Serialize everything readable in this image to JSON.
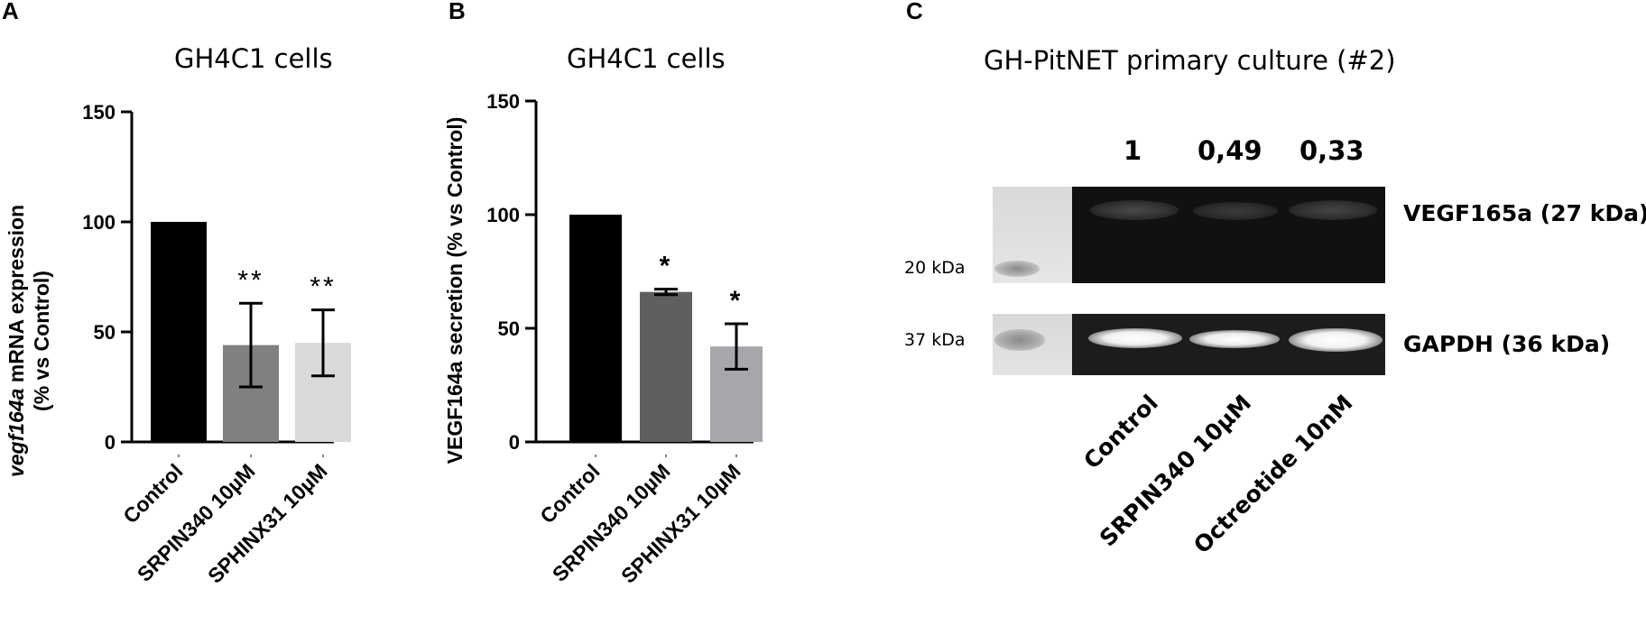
{
  "panels": {
    "a": {
      "letter": "A"
    },
    "b": {
      "letter": "B"
    },
    "c": {
      "letter": "C"
    }
  },
  "chart_data": [
    {
      "type": "bar",
      "title": "GH4C1 cells",
      "ylabel_italic": "vegf164a",
      "ylabel_rest": " mRNA expression",
      "ylabel_line2": "(% vs Control)",
      "categories": [
        "Control",
        "SRPIN340 10µM",
        "SPHINX31 10µM"
      ],
      "values": [
        100,
        44,
        45
      ],
      "errors": [
        0,
        19,
        15
      ],
      "significance": [
        "",
        "**",
        "**"
      ],
      "colors": [
        "#000000",
        "#808080",
        "#d9d9d9"
      ],
      "ylim": [
        0,
        150
      ],
      "yticks": [
        0,
        50,
        100,
        150
      ]
    },
    {
      "type": "bar",
      "title": "GH4C1 cells",
      "ylabel": "VEGF164a secretion (% vs Control)",
      "categories": [
        "Control",
        "SRPIN340 10µM",
        "SPHINX31 10µM"
      ],
      "values": [
        100,
        66,
        42
      ],
      "errors": [
        0,
        1.2,
        10
      ],
      "significance": [
        "",
        "*",
        "*"
      ],
      "colors": [
        "#000000",
        "#5f5f5f",
        "#a6a6ab"
      ],
      "ylim": [
        0,
        150
      ],
      "yticks": [
        0,
        50,
        100,
        150
      ]
    }
  ],
  "western_blot": {
    "title": "GH-PitNET primary culture (#2)",
    "quantification": [
      "1",
      "0,49",
      "0,33"
    ],
    "bands": [
      {
        "label": "VEGF165a (27 kDa)",
        "marker": "20 kDa"
      },
      {
        "label": "GAPDH (36 kDa)",
        "marker": "37 kDa"
      }
    ],
    "lanes": [
      "Control",
      "SRPIN340 10µM",
      "Octreotide 10nM"
    ]
  }
}
